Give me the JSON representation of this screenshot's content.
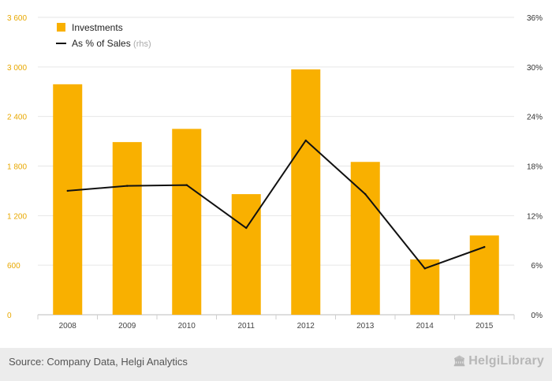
{
  "colors": {
    "bar": "#f9b000",
    "line": "#111111",
    "left_axis_text": "#e8a800",
    "right_axis_text": "#333333",
    "grid": "#e6e6e6",
    "footer_bg": "#ececec"
  },
  "chart_data": {
    "type": "bar",
    "categories": [
      "2008",
      "2009",
      "2010",
      "2011",
      "2012",
      "2013",
      "2014",
      "2015"
    ],
    "series": [
      {
        "name": "Investments",
        "type": "bar",
        "axis": "left",
        "values": [
          2790,
          2090,
          2250,
          1460,
          2970,
          1850,
          670,
          960
        ]
      },
      {
        "name": "As % of Sales",
        "name_suffix": "(rhs)",
        "type": "line",
        "axis": "right",
        "values": [
          15.0,
          15.6,
          15.7,
          10.5,
          21.1,
          14.6,
          5.6,
          8.2
        ]
      }
    ],
    "y_left": {
      "lim": [
        0,
        3600
      ],
      "ticks": [
        0,
        600,
        1200,
        1800,
        2400,
        3000,
        3600
      ],
      "tick_labels": [
        "0",
        "600",
        "1 200",
        "1 800",
        "2 400",
        "3 000",
        "3 600"
      ]
    },
    "y_right": {
      "lim": [
        0,
        36
      ],
      "ticks": [
        0,
        6,
        12,
        18,
        24,
        30,
        36
      ],
      "tick_labels": [
        "0%",
        "6%",
        "12%",
        "18%",
        "24%",
        "30%",
        "36%"
      ]
    },
    "grid": true,
    "legend_position": "top-left"
  },
  "footer": {
    "source": "Source: Company Data, Helgi Analytics",
    "brand": "HelgiLibrary",
    "brand_icon": "building-icon"
  }
}
